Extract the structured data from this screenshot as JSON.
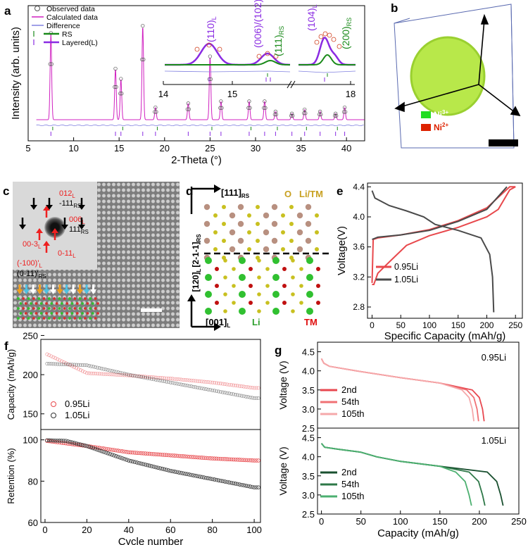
{
  "panels": {
    "a": "a",
    "b": "b",
    "c": "c",
    "d": "d",
    "e": "e",
    "f": "f",
    "g": "g"
  },
  "panel_b": {
    "legend": [
      "Ni3+",
      "Ni2+"
    ],
    "legend_colors": [
      "#22dd22",
      "#dd2200"
    ]
  },
  "panel_c": {
    "labels": {
      "l012": "012L",
      "l111rs_top": "-111RS",
      "l006": "006L",
      "l111rs": "111RS",
      "l003": "00-3L",
      "l011": "0-11L",
      "l100": "(-100)'L",
      "l011rs": "(0-11)'RS"
    }
  },
  "panel_d": {
    "labels": {
      "top_axis": "[111]RS",
      "left_axis_top": "[2-1-1]RS",
      "left_axis_bottom": "[120]L",
      "bottom_axis": "[001]L",
      "o": "O",
      "litm": "Li/TM",
      "li": "Li",
      "tm": "TM"
    }
  },
  "chart_data": [
    {
      "id": "a",
      "type": "line",
      "xlabel": "2-Theta (°)",
      "ylabel": "Intensity (arb. units)",
      "xlim": [
        5,
        42
      ],
      "xticks": [
        5,
        10,
        15,
        20,
        25,
        30,
        35,
        40
      ],
      "legend": [
        "Observed data",
        "Calculated data",
        "Difference",
        "RS",
        "Layered(L)"
      ],
      "peaks_2theta": [
        7.5,
        14.6,
        15.2,
        17.6,
        19.0,
        22.6,
        25.0,
        26.2,
        29.3,
        31.0,
        32.2,
        34.0,
        35.4,
        37.1,
        38.8,
        39.8
      ],
      "peak_heights": [
        0.85,
        0.5,
        0.4,
        0.92,
        0.12,
        0.16,
        0.62,
        0.18,
        0.18,
        0.18,
        0.08,
        0.06,
        0.1,
        0.08,
        0.06,
        0.12
      ],
      "inset": {
        "xticks": [
          "14",
          "15",
          "18"
        ],
        "annotations": [
          "(110)L",
          "(006)/(102)L",
          "(111)RS",
          "(104)L",
          "(200)RS"
        ]
      }
    },
    {
      "id": "e",
      "type": "line",
      "xlabel": "Specific Capacity (mAh/g)",
      "ylabel": "Voltage(V)",
      "xlim": [
        -8,
        262
      ],
      "ylim": [
        2.65,
        4.45
      ],
      "xticks": [
        0,
        50,
        100,
        150,
        200,
        250
      ],
      "yticks": [
        2.8,
        3.2,
        3.6,
        4.0,
        4.4
      ],
      "series": [
        {
          "name": "0.95Li",
          "color": "#e8484c",
          "charge": [
            [
              0,
              3.12
            ],
            [
              2,
              3.7
            ],
            [
              10,
              3.72
            ],
            [
              50,
              3.76
            ],
            [
              100,
              3.83
            ],
            [
              150,
              3.95
            ],
            [
              200,
              4.12
            ],
            [
              240,
              4.4
            ],
            [
              250,
              4.4
            ]
          ],
          "discharge": [
            [
              250,
              4.4
            ],
            [
              240,
              4.36
            ],
            [
              220,
              4.1
            ],
            [
              200,
              4.0
            ],
            [
              150,
              3.86
            ],
            [
              100,
              3.75
            ],
            [
              60,
              3.62
            ],
            [
              30,
              3.4
            ],
            [
              10,
              3.25
            ],
            [
              3,
              3.1
            ],
            [
              0,
              3.1
            ]
          ]
        },
        {
          "name": "1.05Li",
          "color": "#4a4a4a",
          "charge": [
            [
              0,
              3.7
            ],
            [
              10,
              3.73
            ],
            [
              50,
              3.76
            ],
            [
              100,
              3.82
            ],
            [
              150,
              3.94
            ],
            [
              200,
              4.1
            ],
            [
              235,
              4.4
            ]
          ],
          "discharge": [
            [
              0,
              4.35
            ],
            [
              5,
              4.25
            ],
            [
              30,
              4.15
            ],
            [
              60,
              4.08
            ],
            [
              90,
              4.0
            ],
            [
              110,
              3.9
            ],
            [
              150,
              3.82
            ],
            [
              190,
              3.72
            ],
            [
              205,
              3.5
            ],
            [
              210,
              3.2
            ],
            [
              212,
              2.73
            ]
          ]
        }
      ]
    },
    {
      "id": "f",
      "type": "scatter",
      "xlabel": "Cycle number",
      "ylabel_top": "Capacity (mAh/g)",
      "ylabel_bottom": "Retention (%)",
      "xlim": [
        -2,
        103
      ],
      "xticks": [
        0,
        20,
        40,
        60,
        80,
        100
      ],
      "top_ylim": [
        130,
        245
      ],
      "top_yticks": [
        150,
        200,
        250
      ],
      "bottom_ylim": [
        60,
        105
      ],
      "bottom_yticks": [
        60,
        80,
        100
      ],
      "series": [
        {
          "name": "0.95Li",
          "color": "#e8484c",
          "capacity": [
            [
              1,
              226
            ],
            [
              20,
              202
            ],
            [
              40,
              199
            ],
            [
              60,
              195
            ],
            [
              80,
              190
            ],
            [
              100,
              183
            ]
          ],
          "retention": [
            [
              1,
              99.5
            ],
            [
              20,
              97
            ],
            [
              40,
              94
            ],
            [
              60,
              92.5
            ],
            [
              80,
              91
            ],
            [
              100,
              90
            ]
          ]
        },
        {
          "name": "1.05Li",
          "color": "#333333",
          "capacity": [
            [
              1,
              214
            ],
            [
              20,
              212
            ],
            [
              40,
              200
            ],
            [
              60,
              190
            ],
            [
              80,
              180
            ],
            [
              100,
              170
            ]
          ],
          "retention": [
            [
              1,
              99.8
            ],
            [
              10,
              99.5
            ],
            [
              20,
              97
            ],
            [
              40,
              90
            ],
            [
              60,
              85
            ],
            [
              80,
              81
            ],
            [
              100,
              77
            ]
          ]
        }
      ]
    },
    {
      "id": "g",
      "type": "line",
      "xlabel": "Capacity (mAh/g)",
      "ylabel": "Voltage (V)",
      "xlim": [
        -5,
        250
      ],
      "xticks": [
        0,
        50,
        100,
        150,
        200,
        250
      ],
      "ylim": [
        2.5,
        4.75
      ],
      "yticks": [
        2.5,
        3.0,
        3.5,
        4.0,
        4.5
      ],
      "top": {
        "label": "0.95Li",
        "series": [
          {
            "name": "2nd",
            "color": "#e84850",
            "end": 206
          },
          {
            "name": "54th",
            "color": "#f07074",
            "end": 199
          },
          {
            "name": "105th",
            "color": "#f5a8aa",
            "end": 193
          }
        ]
      },
      "bottom": {
        "label": "1.05Li",
        "series": [
          {
            "name": "2nd",
            "color": "#1a5030",
            "end": 230
          },
          {
            "name": "54th",
            "color": "#2e7848",
            "end": 207
          },
          {
            "name": "105th",
            "color": "#4cb070",
            "end": 190
          }
        ]
      }
    }
  ]
}
